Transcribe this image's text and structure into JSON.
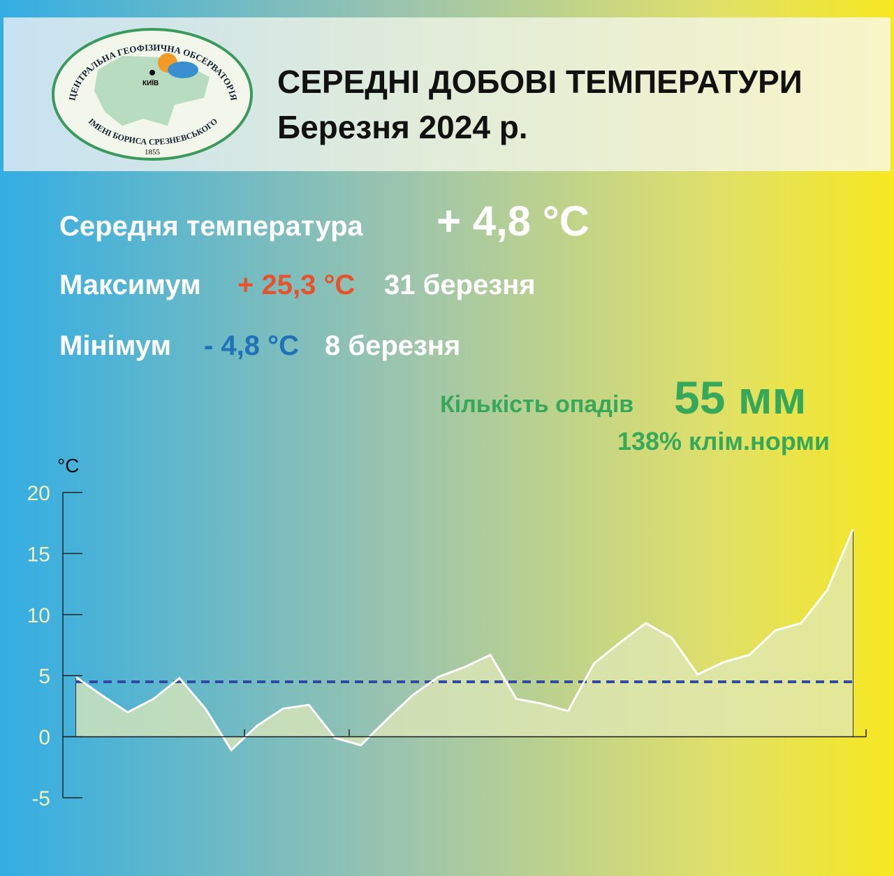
{
  "header": {
    "title": "СЕРЕДНІ ДОБОВІ ТЕМПЕРАТУРИ",
    "subtitle": "Березня 2024 р.",
    "logo": {
      "top_text": "ЦЕНТРАЛЬНА ГЕОФІЗИЧНА ОБСЕРВАТОРІЯ",
      "bottom_text": "ІМЕНІ БОРИСА СРЕЗНЕВСЬКОГО",
      "year": "1855",
      "city": "КИЇВ"
    }
  },
  "stats": {
    "mean_label": "Середня температура",
    "mean_value": "+ 4,8 °C",
    "max_label": "Максимум",
    "max_value": "+ 25,3 °C",
    "max_date": "31 березня",
    "min_label": "Мінімум",
    "min_value": "- 4,8 °C",
    "min_date": "8 березня",
    "precip_label": "Кількість опадів",
    "precip_value": "55 мм",
    "precip_norm": "138% клім.норми"
  },
  "chart_data": {
    "type": "area",
    "y_unit": "°C",
    "x": [
      1,
      2,
      3,
      4,
      5,
      6,
      7,
      8,
      9,
      10,
      11,
      12,
      13,
      14,
      15,
      16,
      17,
      18,
      19,
      20,
      21,
      22,
      23,
      24,
      25,
      26,
      27,
      28,
      29,
      30,
      31
    ],
    "values": [
      4.9,
      3.4,
      2.0,
      3.1,
      4.8,
      2.3,
      -1.1,
      0.9,
      2.3,
      2.6,
      -0.1,
      -0.7,
      1.4,
      3.4,
      4.9,
      5.7,
      6.7,
      3.1,
      2.7,
      2.1,
      6.0,
      7.7,
      9.3,
      8.1,
      5.1,
      6.1,
      6.7,
      8.7,
      9.3,
      12.0,
      17.0
    ],
    "color": "#ffffff",
    "fill": "#dfe8b8",
    "reference": 4.5,
    "reference_color": "#2f4aa0",
    "xlim": [
      0.5,
      31.5
    ],
    "ylim": [
      -5,
      20
    ],
    "yticks": [
      20,
      15,
      10,
      5,
      0,
      -5
    ]
  }
}
